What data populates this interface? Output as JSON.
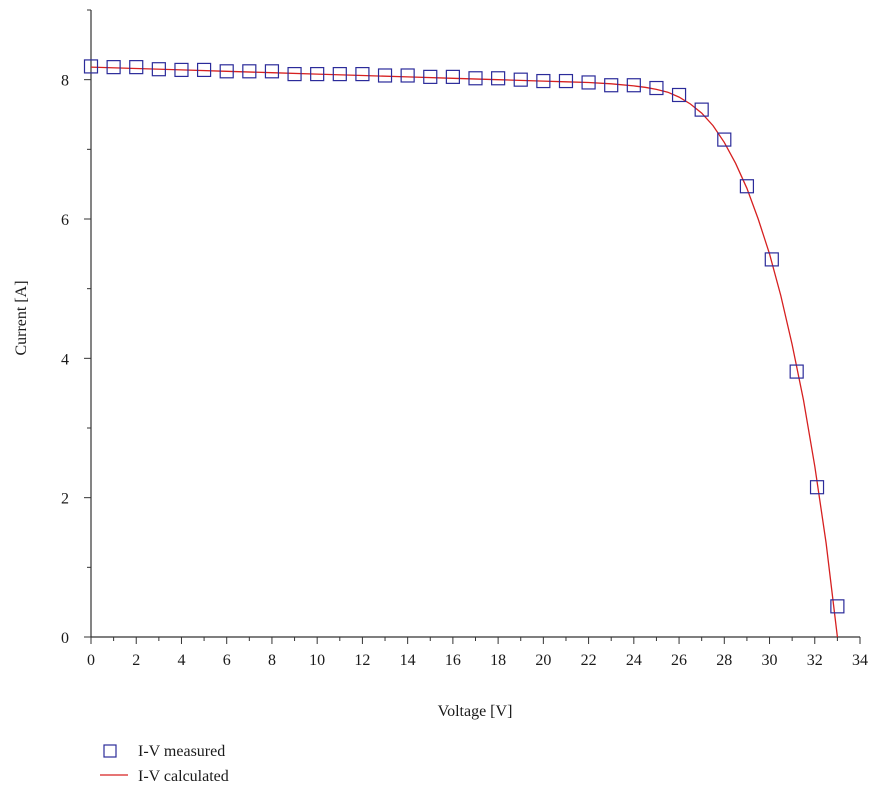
{
  "chart_data": {
    "type": "scatter",
    "xlabel": "Voltage [V]",
    "ylabel": "Current [A]",
    "xlim": [
      0,
      34
    ],
    "ylim": [
      0,
      9
    ],
    "xticks": [
      0,
      2,
      4,
      6,
      8,
      10,
      12,
      14,
      16,
      18,
      20,
      22,
      24,
      26,
      28,
      30,
      32,
      34
    ],
    "yticks": [
      0,
      2,
      4,
      6,
      8
    ],
    "grid": false,
    "legend_position": "bottom-left",
    "series": [
      {
        "name": "I-V measured",
        "kind": "scatter",
        "marker": "square-open",
        "color": "#2b2b9a",
        "x": [
          0,
          1,
          2,
          3,
          4,
          5,
          6,
          7,
          8,
          9,
          10,
          11,
          12,
          13,
          14,
          15,
          16,
          17,
          18,
          19,
          20,
          21,
          22,
          23,
          24,
          25,
          26,
          27,
          28,
          29,
          30.1,
          31.2,
          32.1,
          33.0
        ],
        "y": [
          8.19,
          8.18,
          8.18,
          8.15,
          8.14,
          8.14,
          8.12,
          8.12,
          8.12,
          8.08,
          8.08,
          8.08,
          8.08,
          8.06,
          8.06,
          8.04,
          8.04,
          8.02,
          8.02,
          8.0,
          7.98,
          7.98,
          7.96,
          7.92,
          7.92,
          7.88,
          7.78,
          7.57,
          7.14,
          6.47,
          5.42,
          3.81,
          2.15,
          0.44
        ]
      },
      {
        "name": "I-V calculated",
        "kind": "line",
        "color": "#d62020",
        "x": [
          0,
          2,
          4,
          6,
          8,
          10,
          12,
          14,
          16,
          18,
          20,
          21,
          22,
          23,
          24,
          24.5,
          25,
          25.5,
          26,
          26.5,
          27,
          27.5,
          28,
          28.5,
          29,
          29.5,
          30,
          30.5,
          31,
          31.5,
          32,
          32.5,
          33.0
        ],
        "y": [
          8.18,
          8.16,
          8.14,
          8.12,
          8.1,
          8.08,
          8.06,
          8.04,
          8.02,
          8.0,
          7.98,
          7.97,
          7.96,
          7.94,
          7.91,
          7.89,
          7.86,
          7.82,
          7.75,
          7.65,
          7.52,
          7.34,
          7.1,
          6.8,
          6.44,
          6.0,
          5.5,
          4.9,
          4.2,
          3.4,
          2.45,
          1.35,
          0.0
        ]
      }
    ]
  }
}
